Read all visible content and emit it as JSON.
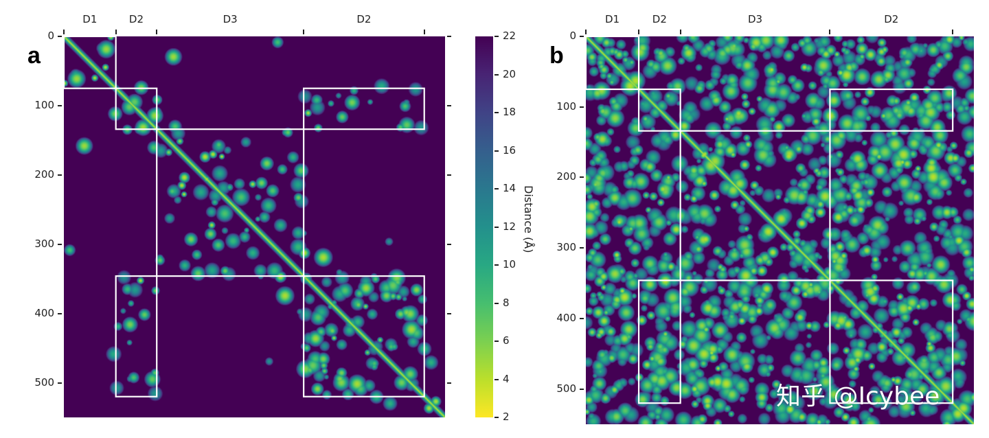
{
  "chart_data": {
    "type": "heatmap",
    "panels": [
      {
        "id": "a",
        "label": "a",
        "description_value": "Distance map panel a",
        "size": 550
      },
      {
        "id": "b",
        "label": "b",
        "description_value": "Distance map panel b",
        "size": 550
      }
    ],
    "y_ticks": [
      0,
      100,
      200,
      300,
      400,
      500
    ],
    "domains": [
      {
        "label": "D1",
        "start": 0,
        "end": 75
      },
      {
        "label": "D2",
        "start": 75,
        "end": 134
      },
      {
        "label": "D3",
        "start": 134,
        "end": 346
      },
      {
        "label": "D2",
        "start": 346,
        "end": 520
      }
    ],
    "colorbar": {
      "label": "Distance (Å)",
      "min": 2,
      "max": 22,
      "ticks": [
        22,
        20,
        18,
        16,
        14,
        12,
        10,
        8,
        6,
        4,
        2
      ],
      "colormap": "viridis"
    }
  },
  "watermark": "知乎 @Icybee",
  "colors": {
    "background": "#440154",
    "box": "#ffffff"
  }
}
